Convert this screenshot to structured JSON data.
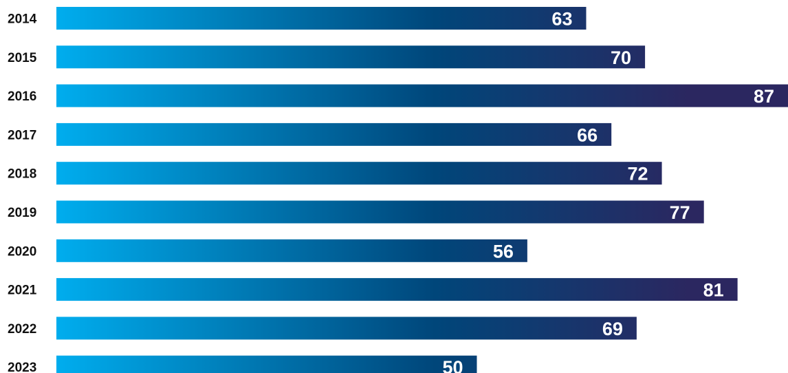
{
  "chart_data": {
    "type": "bar",
    "orientation": "horizontal",
    "categories": [
      "2014",
      "2015",
      "2016",
      "2017",
      "2018",
      "2019",
      "2020",
      "2021",
      "2022",
      "2023"
    ],
    "values": [
      63,
      70,
      87,
      66,
      72,
      77,
      56,
      81,
      69,
      50
    ],
    "value_labels": [
      "63",
      "70",
      "87",
      "66",
      "72",
      "77",
      "56",
      "81",
      "69",
      "50"
    ],
    "title": "",
    "xlabel": "",
    "ylabel": "",
    "xlim": [
      0,
      87
    ],
    "grid": false,
    "legend": "none",
    "colors": {
      "bar_gradient_start": "#00adee",
      "bar_gradient_mid": "#00467a",
      "bar_gradient_end": "#2b2760",
      "value_label": "#ffffff",
      "category_label": "#111111"
    }
  }
}
